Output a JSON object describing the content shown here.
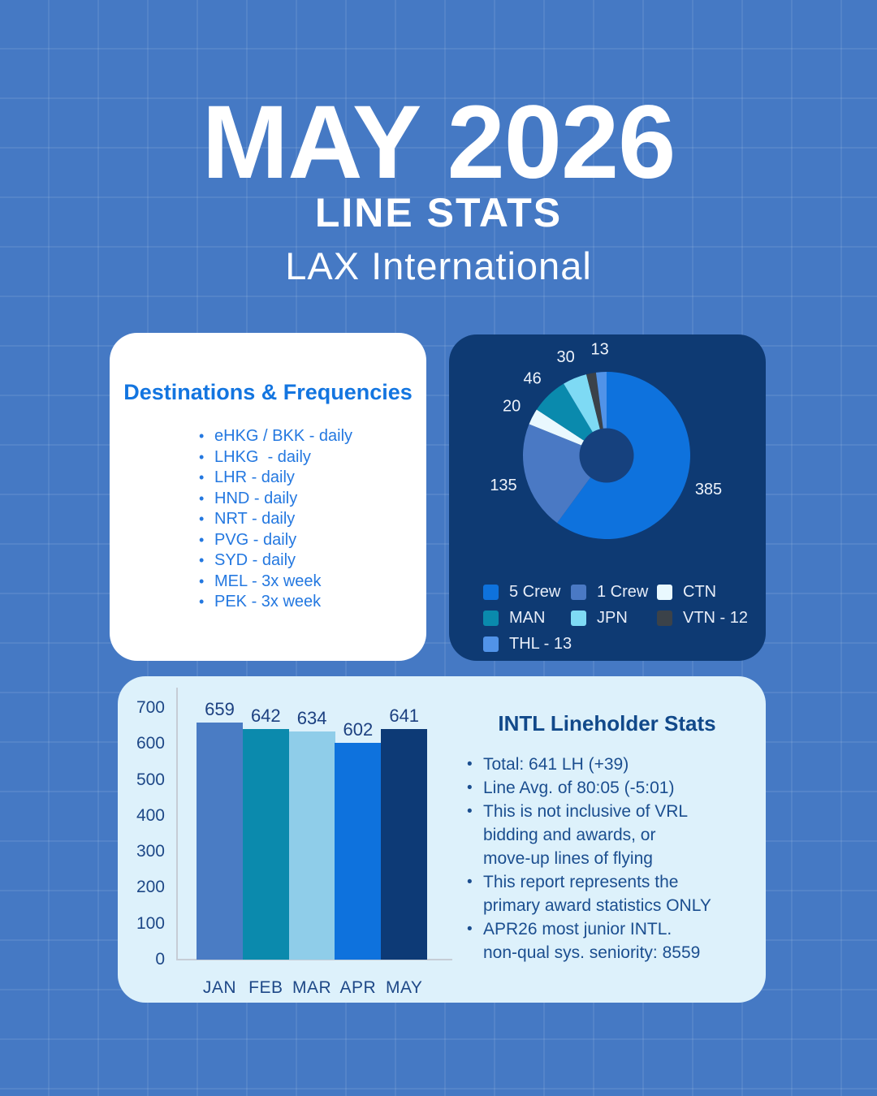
{
  "header": {
    "title": "MAY 2026",
    "subtitle": "LINE STATS",
    "base": "LAX International"
  },
  "destinations": {
    "title": "Destinations & Frequencies",
    "items": [
      "eHKG / BKK - daily",
      "LHKG  - daily",
      "LHR - daily",
      "HND - daily",
      "NRT - daily",
      "PVG - daily",
      "SYD - daily",
      "MEL - 3x week",
      "PEK - 3x week"
    ]
  },
  "chart_data": [
    {
      "type": "pie",
      "title": "",
      "labels": [
        "5 Crew",
        "1 Crew",
        "CTN",
        "MAN",
        "JPN",
        "VTN - 12",
        "THL - 13"
      ],
      "values": [
        385,
        135,
        20,
        46,
        30,
        12,
        13
      ],
      "colors": [
        "#0e72dd",
        "#4a79c4",
        "#e9f8fe",
        "#0a8aad",
        "#7edaf4",
        "#3b4249",
        "#5193e8"
      ],
      "slice_label_visible": [
        true,
        true,
        true,
        true,
        true,
        false,
        true
      ],
      "donut": true,
      "hole_color": "#16417e",
      "start_angle_deg": 0,
      "direction": "clockwise",
      "legend_position": "bottom"
    },
    {
      "type": "bar",
      "title": "",
      "categories": [
        "JAN",
        "FEB",
        "MAR",
        "APR",
        "MAY"
      ],
      "values": [
        659,
        642,
        634,
        602,
        641
      ],
      "colors": [
        "#4a7cc4",
        "#0b8aad",
        "#8fcde9",
        "#0e72dd",
        "#0d3a76"
      ],
      "xlabel": "",
      "ylabel": "",
      "ylim": [
        0,
        700
      ],
      "yticks": [
        0,
        100,
        200,
        300,
        400,
        500,
        600,
        700
      ],
      "grid": false
    }
  ],
  "stats": {
    "title": "INTL Lineholder Stats",
    "bullets": [
      "Total: 641 LH (+39)",
      "Line Avg. of 80:05 (-5:01)",
      "This is not inclusive of VRL\nbidding and awards, or\nmove-up lines of flying",
      "This report represents the\nprimary award statistics ONLY",
      "APR26 most junior INTL.\nnon-qual sys. seniority: 8559"
    ]
  },
  "palette": {
    "background": "#4579c4",
    "white_card": "#ffffff",
    "navy_card": "#0e3a73",
    "light_card": "#ddf1fb",
    "accent_blue": "#1375e0",
    "dark_text": "#1b4e8f"
  }
}
